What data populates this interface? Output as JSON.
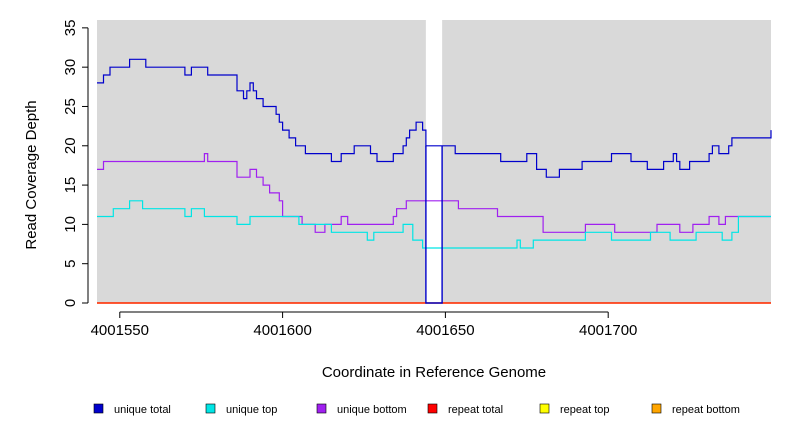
{
  "chart_data": {
    "type": "line",
    "title": "",
    "xlabel": "Coordinate in Reference Genome",
    "ylabel": "Read Coverage Depth",
    "xlim": [
      4001543,
      4001750
    ],
    "ylim": [
      0,
      36
    ],
    "xticks": [
      4001550,
      4001600,
      4001650,
      4001700
    ],
    "xtick_labels": [
      "4001550",
      "4001600",
      "4001650",
      "4001700"
    ],
    "yticks": [
      0,
      5,
      10,
      15,
      20,
      25,
      30,
      35
    ],
    "ytick_labels": [
      "0",
      "5",
      "10",
      "15",
      "20",
      "25",
      "30",
      "35"
    ],
    "background": "#d9d9d9",
    "gap": [
      4001644,
      4001649
    ],
    "legend_position": "bottom",
    "series": [
      {
        "name": "unique total",
        "color": "#0000cc",
        "x": [
          4001543,
          4001545,
          4001547,
          4001549,
          4001553,
          4001558,
          4001570,
          4001572,
          4001577,
          4001581,
          4001586,
          4001588,
          4001589,
          4001590,
          4001591,
          4001592,
          4001594,
          4001596,
          4001598,
          4001599,
          4001600,
          4001601,
          4001602,
          4001604,
          4001607,
          4001612,
          4001615,
          4001618,
          4001622,
          4001627,
          4001629,
          4001630,
          4001634,
          4001637,
          4001638,
          4001639,
          4001641,
          4001643,
          4001644,
          4001649,
          4001653,
          4001665,
          4001667,
          4001673,
          4001675,
          4001678,
          4001681,
          4001685,
          4001692,
          4001697,
          4001701,
          4001707,
          4001712,
          4001717,
          4001720,
          4001721,
          4001722,
          4001725,
          4001731,
          4001732,
          4001734,
          4001736,
          4001737,
          4001738,
          4001750
        ],
        "y": [
          28,
          29,
          30,
          30,
          31,
          30,
          29,
          30,
          29,
          29,
          27,
          26,
          27,
          28,
          27,
          26,
          25,
          25,
          24,
          23,
          22,
          22,
          21,
          20,
          19,
          19,
          18,
          19,
          20,
          19,
          18,
          18,
          19,
          20,
          21,
          22,
          23,
          22,
          20,
          20,
          19,
          19,
          18,
          18,
          19,
          17,
          16,
          17,
          18,
          18,
          19,
          18,
          17,
          18,
          19,
          18,
          17,
          18,
          19,
          20,
          19,
          19,
          20,
          21,
          22
        ]
      },
      {
        "name": "unique top",
        "color": "#00e5e5",
        "x": [
          4001543,
          4001548,
          4001553,
          4001557,
          4001570,
          4001572,
          4001576,
          4001586,
          4001590,
          4001600,
          4001605,
          4001615,
          4001626,
          4001628,
          4001635,
          4001637,
          4001640,
          4001643,
          4001644,
          4001649,
          4001672,
          4001673,
          4001677,
          4001689,
          4001693,
          4001701,
          4001713,
          4001719,
          4001727,
          4001729,
          4001732,
          4001733,
          4001734,
          4001735,
          4001736,
          4001738,
          4001740,
          4001750
        ],
        "y": [
          11,
          12,
          13,
          12,
          11,
          12,
          11,
          10,
          11,
          11,
          10,
          9,
          8,
          9,
          9,
          10,
          8,
          7,
          7,
          7,
          8,
          7,
          8,
          8,
          9,
          8,
          9,
          8,
          9,
          9,
          9,
          9,
          9,
          8,
          8,
          9,
          11,
          11
        ]
      },
      {
        "name": "unique bottom",
        "color": "#a020f0",
        "x": [
          4001543,
          4001545,
          4001547,
          4001576,
          4001577,
          4001586,
          4001590,
          4001592,
          4001594,
          4001596,
          4001598,
          4001599,
          4001600,
          4001606,
          4001610,
          4001613,
          4001618,
          4001620,
          4001623,
          4001626,
          4001629,
          4001630,
          4001632,
          4001634,
          4001635,
          4001637,
          4001638,
          4001639,
          4001641,
          4001643,
          4001644,
          4001649,
          4001654,
          4001660,
          4001666,
          4001674,
          4001680,
          4001682,
          4001686,
          4001693,
          4001697,
          4001702,
          4001707,
          4001715,
          4001718,
          4001721,
          4001722,
          4001726,
          4001731,
          4001734,
          4001736,
          4001738,
          4001750
        ],
        "y": [
          17,
          18,
          18,
          19,
          18,
          16,
          17,
          16,
          15,
          14,
          14,
          13,
          11,
          10,
          9,
          10,
          11,
          10,
          10,
          10,
          10,
          10,
          10,
          11,
          12,
          12,
          13,
          13,
          13,
          13,
          13,
          13,
          12,
          12,
          11,
          11,
          9,
          9,
          9,
          10,
          10,
          9,
          9,
          10,
          10,
          10,
          9,
          10,
          11,
          10,
          11,
          11,
          11
        ]
      },
      {
        "name": "repeat total",
        "color": "#ff0000",
        "x": [
          4001543,
          4001750
        ],
        "y": [
          0,
          0
        ]
      },
      {
        "name": "repeat top",
        "color": "#ffff00",
        "x": [
          4001543,
          4001750
        ],
        "y": [
          0,
          0
        ]
      },
      {
        "name": "repeat bottom",
        "color": "#ffa500",
        "x": [
          4001543,
          4001750
        ],
        "y": [
          0,
          0
        ]
      }
    ],
    "legend": [
      {
        "label": "unique total",
        "color": "#0000cc"
      },
      {
        "label": "unique top",
        "color": "#00e5e5"
      },
      {
        "label": "unique bottom",
        "color": "#a020f0"
      },
      {
        "label": "repeat total",
        "color": "#ff0000"
      },
      {
        "label": "repeat top",
        "color": "#ffff00"
      },
      {
        "label": "repeat bottom",
        "color": "#ffa500"
      }
    ]
  }
}
